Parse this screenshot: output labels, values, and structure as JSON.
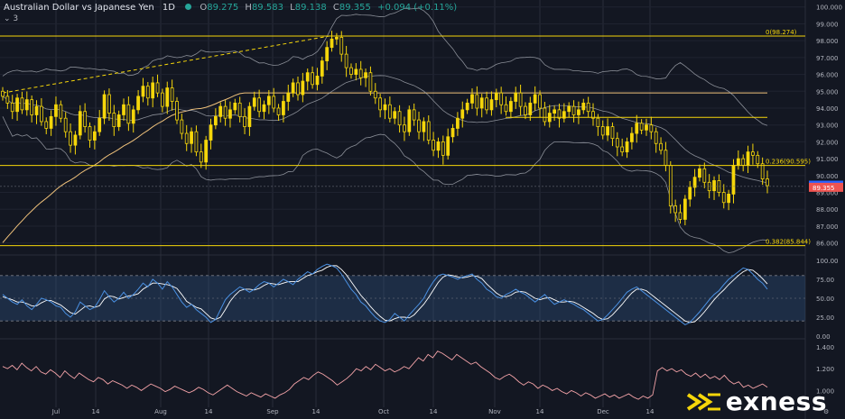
{
  "header": {
    "symbol": "Australian Dollar vs Japanese Yen",
    "timeframe": "1D",
    "open_label": "O",
    "open": "89.275",
    "high_label": "H",
    "high": "89.583",
    "low_label": "L",
    "low": "89.138",
    "close_label": "C",
    "close": "89.355",
    "change": "+0.094 (+0.11%)",
    "collapsed_count": "3"
  },
  "logo": {
    "text": "exness"
  },
  "colors": {
    "background": "#131722",
    "candle": "#f5d60a",
    "fib": "#f5d60a",
    "band": "#b2b5be",
    "ema": "#f0c27b",
    "stoch_k": "#4a90e2",
    "stoch_d": "#ffffff",
    "stoch_zone": "#2a4a72",
    "atr": "#f4a3a8"
  },
  "chart_data": [
    {
      "type": "candlestick",
      "title": "Australian Dollar vs Japanese Yen 1D",
      "y_axis_ticks": [
        "100.000",
        "99.000",
        "98.000",
        "97.000",
        "96.000",
        "95.000",
        "94.000",
        "93.000",
        "92.000",
        "91.000",
        "90.000",
        "89.000",
        "88.000",
        "87.000",
        "86.000"
      ],
      "ylim": [
        85.5,
        100.2
      ],
      "x_axis_ticks": [
        "Jul",
        "14",
        "Aug",
        "14",
        "Sep",
        "14",
        "Oct",
        "14",
        "Nov",
        "14",
        "Dec",
        "14"
      ],
      "last_price": 89.355,
      "prev_price": 89.376,
      "fibonacci": [
        {
          "label": "0(98.274)",
          "value": 98.274
        },
        {
          "label": "0.236(90.595)",
          "value": 90.595
        },
        {
          "label": "0.382(85.844)",
          "value": 85.844
        }
      ],
      "horizontal_line": 93.45,
      "closes": [
        94.7,
        94.3,
        93.8,
        94.6,
        93.9,
        94.5,
        93.6,
        94.1,
        93.2,
        92.8,
        93.5,
        94.2,
        93.4,
        92.6,
        91.8,
        92.4,
        93.8,
        92.9,
        92.1,
        92.6,
        93.4,
        94.8,
        93.7,
        92.9,
        93.6,
        94.2,
        93.1,
        93.9,
        94.7,
        95.3,
        94.6,
        95.5,
        94.9,
        94.1,
        95.2,
        94.4,
        93.3,
        92.5,
        91.9,
        92.6,
        91.4,
        90.8,
        92.1,
        93.0,
        93.5,
        94.1,
        93.4,
        93.9,
        94.3,
        93.5,
        92.9,
        94.1,
        94.6,
        93.8,
        94.2,
        94.7,
        94.0,
        93.6,
        94.4,
        94.9,
        95.5,
        94.8,
        95.6,
        96.1,
        95.4,
        95.9,
        96.8,
        97.6,
        98.1,
        98.2,
        97.2,
        96.4,
        96.0,
        96.3,
        95.8,
        96.1,
        95.0,
        94.6,
        93.9,
        94.2,
        93.4,
        93.8,
        93.0,
        92.6,
        93.9,
        93.3,
        92.6,
        93.2,
        92.1,
        91.5,
        92.0,
        91.2,
        92.3,
        92.8,
        93.4,
        93.9,
        94.3,
        94.8,
        94.0,
        94.6,
        93.9,
        94.5,
        94.9,
        94.2,
        93.8,
        94.4,
        94.9,
        94.1,
        93.6,
        94.3,
        94.8,
        94.0,
        93.2,
        93.7,
        93.9,
        93.4,
        93.8,
        94.1,
        93.6,
        93.9,
        94.3,
        93.8,
        93.4,
        92.9,
        92.4,
        92.9,
        92.2,
        91.7,
        91.4,
        92.0,
        92.5,
        93.1,
        92.7,
        93.0,
        92.6,
        91.9,
        91.5,
        90.6,
        88.2,
        87.8,
        87.4,
        88.6,
        89.3,
        89.9,
        90.4,
        89.6,
        89.1,
        89.7,
        89.0,
        88.4,
        88.9,
        90.6,
        91.0,
        90.6,
        91.4,
        91.2,
        90.7,
        89.8,
        89.4
      ]
    },
    {
      "type": "line",
      "name": "Stochastic",
      "y_axis_ticks": [
        "100.00",
        "75.00",
        "50.00",
        "25.00",
        "0.00"
      ],
      "ylim": [
        0,
        100
      ],
      "band": [
        20,
        80
      ],
      "k": [
        55,
        50,
        45,
        42,
        48,
        40,
        35,
        42,
        50,
        48,
        45,
        40,
        38,
        30,
        25,
        32,
        45,
        40,
        35,
        38,
        48,
        60,
        52,
        45,
        50,
        58,
        50,
        55,
        62,
        70,
        65,
        75,
        70,
        62,
        72,
        65,
        55,
        45,
        38,
        42,
        35,
        30,
        25,
        18,
        22,
        35,
        48,
        55,
        60,
        65,
        62,
        58,
        62,
        68,
        72,
        70,
        65,
        70,
        75,
        72,
        68,
        75,
        80,
        85,
        82,
        88,
        92,
        95,
        93,
        90,
        82,
        72,
        62,
        55,
        45,
        40,
        32,
        25,
        20,
        18,
        22,
        30,
        25,
        20,
        28,
        35,
        42,
        50,
        62,
        72,
        80,
        82,
        80,
        78,
        75,
        78,
        80,
        82,
        75,
        70,
        62,
        58,
        52,
        50,
        55,
        58,
        62,
        58,
        55,
        50,
        45,
        50,
        55,
        48,
        42,
        45,
        48,
        45,
        42,
        38,
        35,
        30,
        25,
        20,
        22,
        28,
        35,
        42,
        50,
        58,
        62,
        65,
        60,
        55,
        50,
        45,
        40,
        35,
        30,
        25,
        20,
        15,
        18,
        25,
        32,
        40,
        48,
        55,
        60,
        68,
        75,
        80,
        85,
        90,
        88,
        82,
        75,
        70,
        62
      ],
      "d": [
        52,
        50,
        48,
        45,
        45,
        43,
        40,
        40,
        44,
        47,
        47,
        44,
        41,
        36,
        31,
        29,
        34,
        39,
        40,
        38,
        40,
        49,
        53,
        52,
        49,
        51,
        53,
        54,
        56,
        62,
        66,
        70,
        70,
        69,
        68,
        66,
        63,
        55,
        46,
        42,
        38,
        36,
        30,
        24,
        22,
        25,
        35,
        46,
        54,
        60,
        62,
        62,
        61,
        63,
        67,
        70,
        69,
        68,
        70,
        72,
        72,
        72,
        76,
        80,
        82,
        85,
        87,
        91,
        93,
        93,
        88,
        81,
        72,
        63,
        54,
        47,
        39,
        32,
        26,
        21,
        20,
        23,
        25,
        25,
        24,
        28,
        35,
        42,
        51,
        61,
        71,
        78,
        81,
        80,
        78,
        77,
        78,
        80,
        79,
        76,
        69,
        63,
        57,
        53,
        52,
        54,
        58,
        59,
        58,
        54,
        50,
        48,
        50,
        51,
        48,
        45,
        45,
        46,
        45,
        42,
        38,
        34,
        30,
        25,
        22,
        23,
        28,
        35,
        42,
        50,
        57,
        62,
        62,
        60,
        55,
        50,
        45,
        40,
        35,
        30,
        25,
        20,
        18,
        19,
        25,
        32,
        40,
        48,
        55,
        61,
        68,
        74,
        80,
        85,
        88,
        87,
        82,
        76,
        69
      ]
    },
    {
      "type": "line",
      "name": "ATR",
      "y_axis_ticks": [
        "1.400",
        "1.200",
        "1.000"
      ],
      "ylim": [
        0.88,
        1.44
      ],
      "values": [
        1.22,
        1.2,
        1.23,
        1.19,
        1.25,
        1.21,
        1.18,
        1.22,
        1.17,
        1.15,
        1.19,
        1.16,
        1.12,
        1.18,
        1.14,
        1.11,
        1.16,
        1.13,
        1.1,
        1.08,
        1.12,
        1.1,
        1.06,
        1.09,
        1.07,
        1.05,
        1.02,
        1.05,
        1.03,
        1.0,
        1.03,
        1.06,
        1.04,
        1.02,
        0.99,
        1.01,
        1.04,
        1.02,
        1.0,
        0.98,
        1.0,
        1.03,
        1.01,
        0.98,
        0.96,
        0.99,
        1.02,
        1.05,
        1.02,
        0.99,
        0.97,
        0.95,
        0.98,
        0.96,
        0.94,
        0.97,
        0.95,
        0.93,
        0.96,
        0.98,
        1.01,
        1.06,
        1.09,
        1.12,
        1.1,
        1.14,
        1.17,
        1.15,
        1.12,
        1.09,
        1.05,
        1.08,
        1.11,
        1.15,
        1.2,
        1.18,
        1.22,
        1.19,
        1.24,
        1.21,
        1.18,
        1.2,
        1.17,
        1.19,
        1.22,
        1.2,
        1.25,
        1.3,
        1.27,
        1.33,
        1.3,
        1.36,
        1.34,
        1.31,
        1.28,
        1.33,
        1.3,
        1.27,
        1.24,
        1.26,
        1.22,
        1.19,
        1.16,
        1.12,
        1.1,
        1.13,
        1.15,
        1.12,
        1.08,
        1.05,
        1.08,
        1.06,
        1.02,
        1.05,
        1.03,
        1.0,
        1.02,
        0.99,
        0.97,
        1.0,
        0.98,
        0.95,
        0.98,
        0.96,
        0.93,
        0.95,
        0.97,
        0.94,
        0.96,
        0.93,
        0.95,
        0.97,
        0.94,
        0.92,
        0.95,
        0.93,
        0.96,
        1.18,
        1.21,
        1.18,
        1.2,
        1.17,
        1.19,
        1.15,
        1.13,
        1.16,
        1.12,
        1.15,
        1.11,
        1.13,
        1.1,
        1.14,
        1.09,
        1.06,
        1.08,
        1.03,
        1.05,
        1.02,
        1.04,
        1.06,
        1.03
      ]
    }
  ]
}
